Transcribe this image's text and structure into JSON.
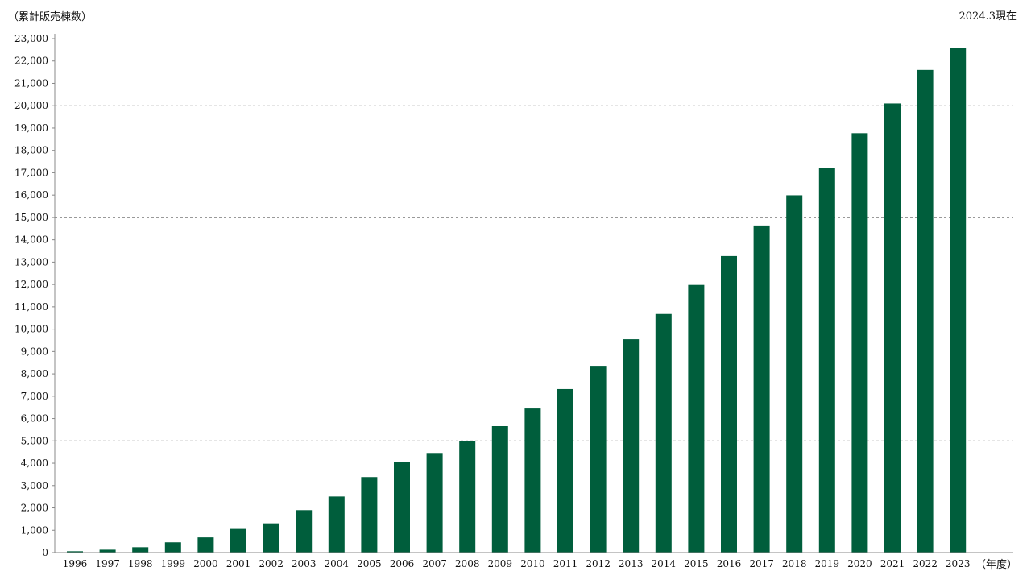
{
  "chart_data": {
    "type": "bar",
    "ylabel": "（累計販売棟数）",
    "xlabel": "（年度）",
    "date_note": "2024.3現在",
    "ylim": [
      0,
      23000
    ],
    "y_ticks": [
      0,
      1000,
      2000,
      3000,
      4000,
      5000,
      6000,
      7000,
      8000,
      9000,
      10000,
      11000,
      12000,
      13000,
      14000,
      15000,
      16000,
      17000,
      18000,
      19000,
      20000,
      21000,
      22000,
      23000
    ],
    "y_tick_labels": [
      "0",
      "1,000",
      "2,000",
      "3,000",
      "4,000",
      "5,000",
      "6,000",
      "7,000",
      "8,000",
      "9,000",
      "10,000",
      "11,000",
      "12,000",
      "13,000",
      "14,000",
      "15,000",
      "16,000",
      "17,000",
      "18,000",
      "19,000",
      "20,000",
      "21,000",
      "22,000",
      "23,000"
    ],
    "grid_lines": [
      5000,
      10000,
      15000,
      20000
    ],
    "categories": [
      "1996",
      "1997",
      "1998",
      "1999",
      "2000",
      "2001",
      "2002",
      "2003",
      "2004",
      "2005",
      "2006",
      "2007",
      "2008",
      "2009",
      "2010",
      "2011",
      "2012",
      "2013",
      "2014",
      "2015",
      "2016",
      "2017",
      "2018",
      "2019",
      "2020",
      "2021",
      "2022",
      "2023"
    ],
    "values": [
      60,
      130,
      240,
      460,
      680,
      1060,
      1310,
      1900,
      2510,
      3380,
      4060,
      4460,
      4990,
      5660,
      6450,
      7320,
      8360,
      9550,
      10680,
      11980,
      13270,
      14640,
      15990,
      17210,
      18770,
      20100,
      21600,
      22590
    ],
    "bar_color": "#005e3c",
    "grid": "dashed at 5,000 intervals",
    "legend": "none"
  }
}
